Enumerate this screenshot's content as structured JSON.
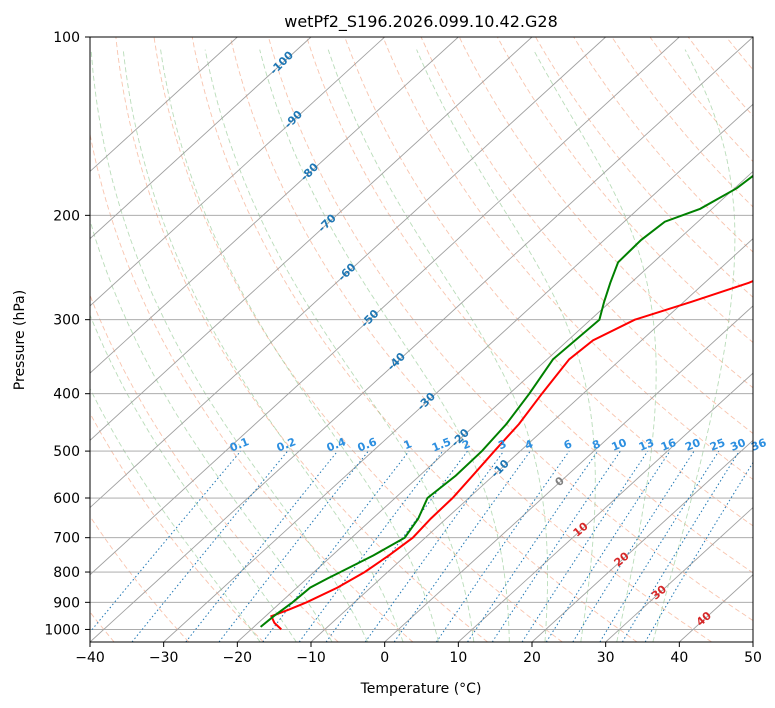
{
  "chart_data": {
    "type": "line",
    "title": "wetPf2_S196.2026.099.10.42.G28",
    "xlabel": "Temperature (°C)",
    "ylabel": "Pressure (hPa)",
    "xlim": [
      -40,
      50
    ],
    "ylim_hpa": [
      1050,
      100
    ],
    "x_ticks": [
      "−40",
      "−30",
      "−20",
      "−10",
      "0",
      "10",
      "20",
      "30",
      "40",
      "50"
    ],
    "x_tick_values": [
      -40,
      -30,
      -20,
      -10,
      0,
      10,
      20,
      30,
      40,
      50
    ],
    "y_ticks": [
      "100",
      "200",
      "300",
      "400",
      "500",
      "600",
      "700",
      "800",
      "900",
      "1000"
    ],
    "y_tick_values": [
      100,
      200,
      300,
      400,
      500,
      600,
      700,
      800,
      900,
      1000
    ],
    "series": [
      {
        "name": "temperature",
        "color": "#ff0000",
        "points": [
          [
            1000,
            -15.9
          ],
          [
            975,
            -17.8
          ],
          [
            950,
            -19.2
          ],
          [
            925,
            -17.8
          ],
          [
            900,
            -16.5
          ],
          [
            850,
            -14.5
          ],
          [
            800,
            -13.1
          ],
          [
            750,
            -12.3
          ],
          [
            700,
            -11.7
          ],
          [
            650,
            -12.1
          ],
          [
            600,
            -12.2
          ],
          [
            550,
            -12.8
          ],
          [
            500,
            -13.5
          ],
          [
            450,
            -14.2
          ],
          [
            400,
            -15.6
          ],
          [
            350,
            -17.0
          ],
          [
            325,
            -16.6
          ],
          [
            300,
            -14.0
          ],
          [
            280,
            -9.0
          ],
          [
            260,
            -4.0
          ],
          [
            240,
            -0.4
          ],
          [
            220,
            3.0
          ],
          [
            200,
            7.0
          ],
          [
            180,
            10.8
          ],
          [
            160,
            16.8
          ],
          [
            140,
            21.0
          ],
          [
            120,
            25.0
          ],
          [
            110,
            28.0
          ],
          [
            100,
            31.0
          ]
        ]
      },
      {
        "name": "dewpoint",
        "color": "#008000",
        "points": [
          [
            990,
            -19.1
          ],
          [
            950,
            -18.9
          ],
          [
            900,
            -18.4
          ],
          [
            850,
            -18.2
          ],
          [
            820,
            -17.2
          ],
          [
            800,
            -16.4
          ],
          [
            750,
            -14.4
          ],
          [
            700,
            -12.8
          ],
          [
            650,
            -13.8
          ],
          [
            600,
            -15.6
          ],
          [
            550,
            -15.1
          ],
          [
            500,
            -15.2
          ],
          [
            450,
            -15.9
          ],
          [
            400,
            -17.3
          ],
          [
            350,
            -19.2
          ],
          [
            300,
            -18.8
          ],
          [
            280,
            -20.8
          ],
          [
            260,
            -22.8
          ],
          [
            240,
            -24.8
          ],
          [
            220,
            -25.0
          ],
          [
            205,
            -24.5
          ],
          [
            195,
            -21.6
          ],
          [
            180,
            -19.7
          ],
          [
            160,
            -18.8
          ],
          [
            150,
            -17.4
          ],
          [
            130,
            -12.0
          ],
          [
            115,
            -7.0
          ],
          [
            100,
            -2.0
          ]
        ]
      }
    ],
    "isobars": [
      100,
      200,
      300,
      400,
      500,
      600,
      700,
      800,
      900,
      1000
    ],
    "isotherms": [
      -110,
      -100,
      -90,
      -80,
      -70,
      -60,
      -50,
      -40,
      -30,
      -20,
      -10,
      0,
      10,
      20,
      30,
      40,
      50
    ],
    "dry_adiabats_c": [
      -40,
      -30,
      -20,
      -10,
      0,
      10,
      20,
      30,
      40,
      50,
      60,
      70,
      80,
      90,
      100,
      110,
      120,
      130,
      140,
      150,
      160,
      170,
      180,
      190,
      200
    ],
    "moist_adiabats_c": [
      -20,
      -15,
      -10,
      -5,
      0,
      5,
      10,
      15,
      20,
      25,
      30,
      35
    ],
    "mixing_ratio_lines": [
      0.1,
      0.2,
      0.4,
      0.6,
      1,
      1.5,
      2,
      3,
      4,
      6,
      8,
      10,
      13,
      16,
      20,
      25,
      30,
      36
    ],
    "mixing_ratio_labels": [
      "0.1",
      "0.2",
      "0.4",
      "0.6",
      "1",
      "1.5",
      "2",
      "3",
      "4",
      "6",
      "8",
      "10",
      "13",
      "16",
      "20",
      "25",
      "30",
      "36"
    ],
    "isotherm_labels": [
      {
        "text": "-100",
        "t": -100,
        "p": 110
      },
      {
        "text": "-90",
        "t": -90,
        "p": 137
      },
      {
        "text": "-80",
        "t": -80,
        "p": 168
      },
      {
        "text": "-70",
        "t": -70,
        "p": 205
      },
      {
        "text": "-60",
        "t": -60,
        "p": 248
      },
      {
        "text": "-50",
        "t": -50,
        "p": 297
      },
      {
        "text": "-40",
        "t": -40,
        "p": 351
      },
      {
        "text": "-30",
        "t": -30,
        "p": 410
      },
      {
        "text": "-20",
        "t": -20,
        "p": 472
      },
      {
        "text": "-10",
        "t": -10,
        "p": 532
      }
    ],
    "theta_labels": [
      {
        "text": "0",
        "t": 0,
        "p": 560,
        "color": "#808080"
      },
      {
        "text": "10",
        "t": 10,
        "p": 675,
        "color": "#d62728"
      },
      {
        "text": "20",
        "t": 20,
        "p": 758,
        "color": "#d62728"
      },
      {
        "text": "30",
        "t": 30,
        "p": 862,
        "color": "#d62728"
      },
      {
        "text": "40",
        "t": 40,
        "p": 955,
        "color": "#d62728"
      }
    ]
  }
}
